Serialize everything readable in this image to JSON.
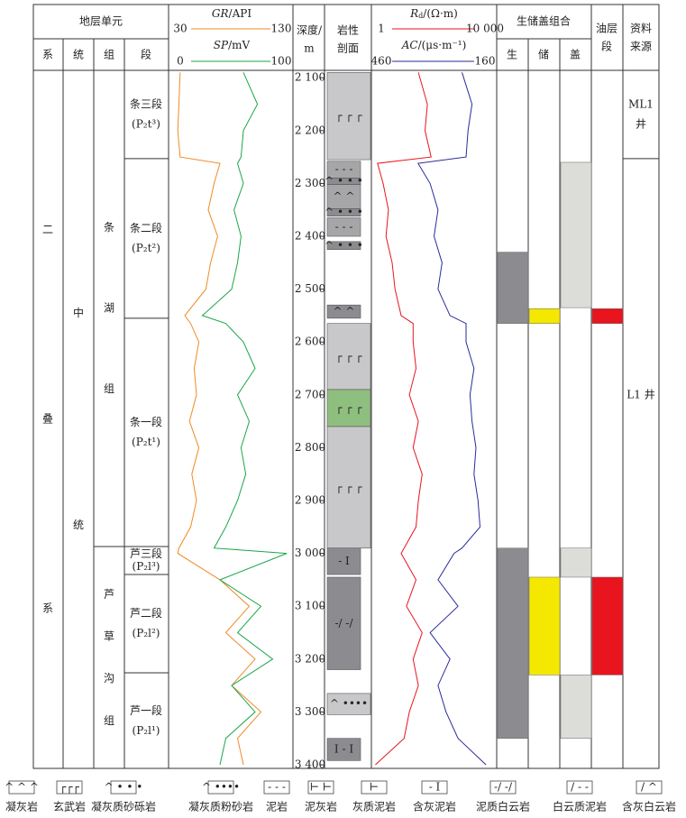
{
  "header": {
    "strat_unit": "地层单元",
    "columns": [
      "系",
      "统",
      "组",
      "段"
    ],
    "depth": "深度/",
    "depth_unit": "m",
    "lith": "岩性",
    "lith2": "剖面",
    "src": "生储盖组合",
    "src_cols": [
      "生",
      "储",
      "盖"
    ],
    "oil": "油层",
    "oil2": "段",
    "source": "资料",
    "source2": "来源"
  },
  "depths": [
    2090,
    2150,
    2200,
    2250,
    2262,
    2300,
    2350,
    2400,
    2450,
    2500,
    2550,
    2565,
    2600,
    2650,
    2700,
    2750,
    2800,
    2850,
    2900,
    2950,
    2990,
    3000,
    3050,
    3100,
    3150,
    3200,
    3250,
    3300,
    3350,
    3400
  ],
  "logs": [
    {
      "name": "GR",
      "unit": "/API",
      "color": "#f08a24",
      "lim": [
        30,
        130
      ],
      "values": [
        36,
        35,
        34,
        36,
        70,
        65,
        60,
        68,
        62,
        58,
        40,
        45,
        52,
        48,
        50,
        44,
        52,
        46,
        50,
        45,
        35,
        34,
        70,
        95,
        75,
        100,
        80,
        105,
        85,
        90
      ]
    },
    {
      "name": "SP",
      "unit": "/mV",
      "color": "#1aa64a",
      "lim": [
        0,
        100
      ],
      "values": [
        60,
        72,
        60,
        58,
        55,
        60,
        52,
        58,
        55,
        50,
        25,
        45,
        60,
        70,
        55,
        65,
        58,
        62,
        55,
        45,
        35,
        97,
        40,
        75,
        55,
        85,
        50,
        70,
        45,
        40
      ]
    },
    {
      "name": "R",
      "sub": "d",
      "unit": "/(Ω·m)",
      "color": "#e8141e",
      "log": true,
      "lim": [
        1,
        {
          "value": 10000,
          "label": "10 000"
        }
      ],
      "values": [
        30,
        60,
        50,
        80,
        1.3,
        2,
        3,
        2.5,
        4,
        5,
        8,
        20,
        20,
        25,
        15,
        30,
        20,
        40,
        30,
        25,
        10,
        8,
        25,
        12,
        40,
        20,
        30,
        15,
        10,
        1.1
      ]
    },
    {
      "name": "AC",
      "unit": "/(μs·m⁻¹)",
      "color": "#2a2a9a",
      "lim": [
        460,
        160
      ],
      "values": [
        240,
        215,
        225,
        230,
        350,
        320,
        300,
        310,
        290,
        300,
        270,
        230,
        230,
        210,
        220,
        215,
        205,
        210,
        200,
        195,
        240,
        260,
        300,
        250,
        320,
        270,
        300,
        280,
        250,
        180
      ]
    }
  ],
  "depth_axis": {
    "lim": [
      2086,
      3408
    ],
    "ticks": [
      {
        "value": 2100,
        "label": "2 100"
      },
      {
        "value": 2200,
        "label": "2 200"
      },
      {
        "value": 2300,
        "label": "2 300"
      },
      {
        "value": 2400,
        "label": "2 400"
      },
      {
        "value": 2500,
        "label": "2 500"
      },
      {
        "value": 2600,
        "label": "2 600"
      },
      {
        "value": 2700,
        "label": "2 700"
      },
      {
        "value": 2800,
        "label": "2 800"
      },
      {
        "value": 2900,
        "label": "2 900"
      },
      {
        "value": 3000,
        "label": "3 000"
      },
      {
        "value": 3100,
        "label": "3 100"
      },
      {
        "value": 3200,
        "label": "3 200"
      },
      {
        "value": 3300,
        "label": "3 300"
      },
      {
        "value": 3400,
        "label": "3 400"
      }
    ]
  },
  "strat": {
    "system": [
      "二",
      "叠",
      "系"
    ],
    "series": [
      "中",
      "统"
    ],
    "formations": [
      {
        "top": 2086,
        "bottom": 2987,
        "chars": [
          "条",
          "湖",
          "组"
        ]
      },
      {
        "top": 2987,
        "bottom": 3408,
        "chars": [
          "芦",
          "草",
          "沟",
          "组"
        ]
      }
    ],
    "members": [
      {
        "top": 2086,
        "bottom": 2253,
        "name": "条三段",
        "code": "(P₂t³)"
      },
      {
        "top": 2253,
        "bottom": 2555,
        "name": "条二段",
        "code": "(P₂t²)"
      },
      {
        "top": 2555,
        "bottom": 2987,
        "name": "条一段",
        "code": "(P₂t¹)"
      },
      {
        "top": 2987,
        "bottom": 3040,
        "name": "芦三段",
        "code": "(P₂l³)"
      },
      {
        "top": 3040,
        "bottom": 3226,
        "name": "芦二段",
        "code": "(P₂l²)"
      },
      {
        "top": 3226,
        "bottom": 3408,
        "name": "芦一段",
        "code": "(P₂l¹)"
      }
    ],
    "sources": [
      {
        "top": 2086,
        "bottom": 2253,
        "name": "ML1",
        "name2": "井"
      },
      {
        "top": 2253,
        "bottom": 3408,
        "name": "L1 井"
      }
    ]
  },
  "lithology": [
    {
      "top": 2090,
      "bottom": 2255,
      "color": "#c8c8cb",
      "symbol": "┌ ┌ ┌"
    },
    {
      "top": 2258,
      "bottom": 2290,
      "color": "#a6a6a9",
      "symbol": "- - -"
    },
    {
      "top": 2290,
      "bottom": 2302,
      "color": "#8c8c90",
      "symbol": "^ • • •"
    },
    {
      "top": 2302,
      "bottom": 2348,
      "color": "#a6a6a9",
      "symbol": "^ ^"
    },
    {
      "top": 2348,
      "bottom": 2362,
      "color": "#8c8c90",
      "symbol": "^ • • •"
    },
    {
      "top": 2365,
      "bottom": 2400,
      "color": "#a6a6a9",
      "symbol": "- - -"
    },
    {
      "top": 2410,
      "bottom": 2425,
      "color": "#8c8c90",
      "symbol": "^ • • •"
    },
    {
      "top": 2530,
      "bottom": 2555,
      "color": "#8c8c90",
      "symbol": "^ ^"
    },
    {
      "top": 2565,
      "bottom": 2690,
      "color": "#c8c8cb",
      "symbol": "┌ ┌ ┌"
    },
    {
      "top": 2690,
      "bottom": 2760,
      "color": "#8fbf7f",
      "symbol": "┌ ┌ ┌"
    },
    {
      "top": 2760,
      "bottom": 2990,
      "color": "#c8c8cb",
      "symbol": "┌ ┌ ┌"
    },
    {
      "top": 2990,
      "bottom": 3040,
      "color": "#8c8c90",
      "symbol": "- I"
    },
    {
      "top": 3045,
      "bottom": 3220,
      "color": "#8c8c90",
      "symbol": "-/ -/"
    },
    {
      "top": 3265,
      "bottom": 3305,
      "color": "#c8c8cb",
      "symbol": "^ ••••"
    },
    {
      "top": 3350,
      "bottom": 3392,
      "color": "#8c8c90",
      "symbol": "I - I"
    }
  ],
  "assessment": [
    {
      "color": "#8c8c90",
      "intervals": [
        [
          2430,
          2565
        ],
        [
          2990,
          3350
        ]
      ]
    },
    {
      "color": "#f5e800",
      "intervals": [
        [
          2537,
          2565
        ],
        [
          3045,
          3230
        ]
      ]
    },
    {
      "color": "#dcdcd8",
      "intervals": [
        [
          2260,
          2535
        ],
        [
          2990,
          3045
        ],
        [
          3230,
          3350
        ]
      ]
    },
    {
      "color": "#e8141e",
      "intervals": [
        [
          2537,
          2565
        ],
        [
          3045,
          3230
        ]
      ]
    }
  ],
  "legend": [
    {
      "symbol": "^ ^ ^",
      "label": "凝灰岩"
    },
    {
      "symbol": "┌┌┌",
      "label": "玄武岩"
    },
    {
      "symbol": "^ • • •",
      "label": "凝灰质砂砾岩"
    },
    {
      "symbol": "^ ••••",
      "label": "凝灰质粉砂岩"
    },
    {
      "symbol": "- - -",
      "label": "泥岩"
    },
    {
      "symbol": "⊢ ⊢",
      "label": "泥灰岩"
    },
    {
      "symbol": "⊢",
      "label": "灰质泥岩"
    },
    {
      "symbol": "- I",
      "label": "含灰泥岩"
    },
    {
      "symbol": "-/ -/",
      "label": "泥质白云岩"
    },
    {
      "symbol": "/ - -",
      "label": "白云质泥岩"
    },
    {
      "symbol": "/ ^",
      "label": "含灰白云岩"
    }
  ]
}
